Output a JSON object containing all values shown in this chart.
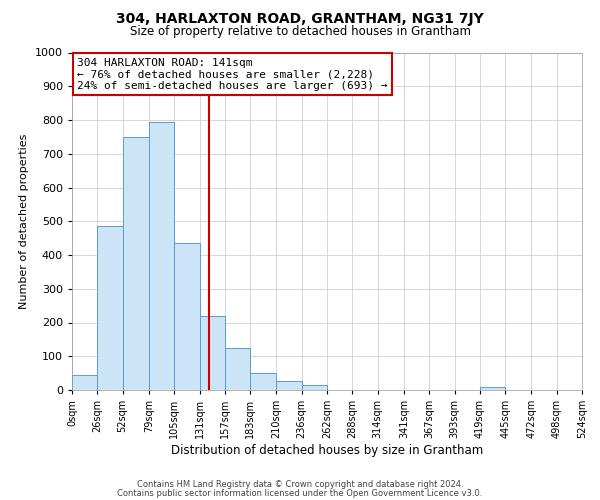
{
  "title": "304, HARLAXTON ROAD, GRANTHAM, NG31 7JY",
  "subtitle": "Size of property relative to detached houses in Grantham",
  "xlabel": "Distribution of detached houses by size in Grantham",
  "ylabel": "Number of detached properties",
  "bin_edges": [
    0,
    26,
    52,
    79,
    105,
    131,
    157,
    183,
    210,
    236,
    262,
    288,
    314,
    341,
    367,
    393,
    419,
    445,
    472,
    498,
    524
  ],
  "bar_heights": [
    44,
    485,
    750,
    795,
    435,
    218,
    125,
    50,
    28,
    15,
    0,
    0,
    0,
    0,
    0,
    0,
    8,
    0,
    0,
    0
  ],
  "bar_color": "#cce5f6",
  "bar_edge_color": "#5b9bd5",
  "property_size": 141,
  "vline_color": "#cc0000",
  "annotation_line1": "304 HARLAXTON ROAD: 141sqm",
  "annotation_line2": "← 76% of detached houses are smaller (2,228)",
  "annotation_line3": "24% of semi-detached houses are larger (693) →",
  "annotation_box_color": "#ffffff",
  "annotation_box_edge": "#cc0000",
  "ylim": [
    0,
    1000
  ],
  "tick_labels": [
    "0sqm",
    "26sqm",
    "52sqm",
    "79sqm",
    "105sqm",
    "131sqm",
    "157sqm",
    "183sqm",
    "210sqm",
    "236sqm",
    "262sqm",
    "288sqm",
    "314sqm",
    "341sqm",
    "367sqm",
    "393sqm",
    "419sqm",
    "445sqm",
    "472sqm",
    "498sqm",
    "524sqm"
  ],
  "footer1": "Contains HM Land Registry data © Crown copyright and database right 2024.",
  "footer2": "Contains public sector information licensed under the Open Government Licence v3.0.",
  "background_color": "#ffffff",
  "grid_color": "#d0d0d0"
}
